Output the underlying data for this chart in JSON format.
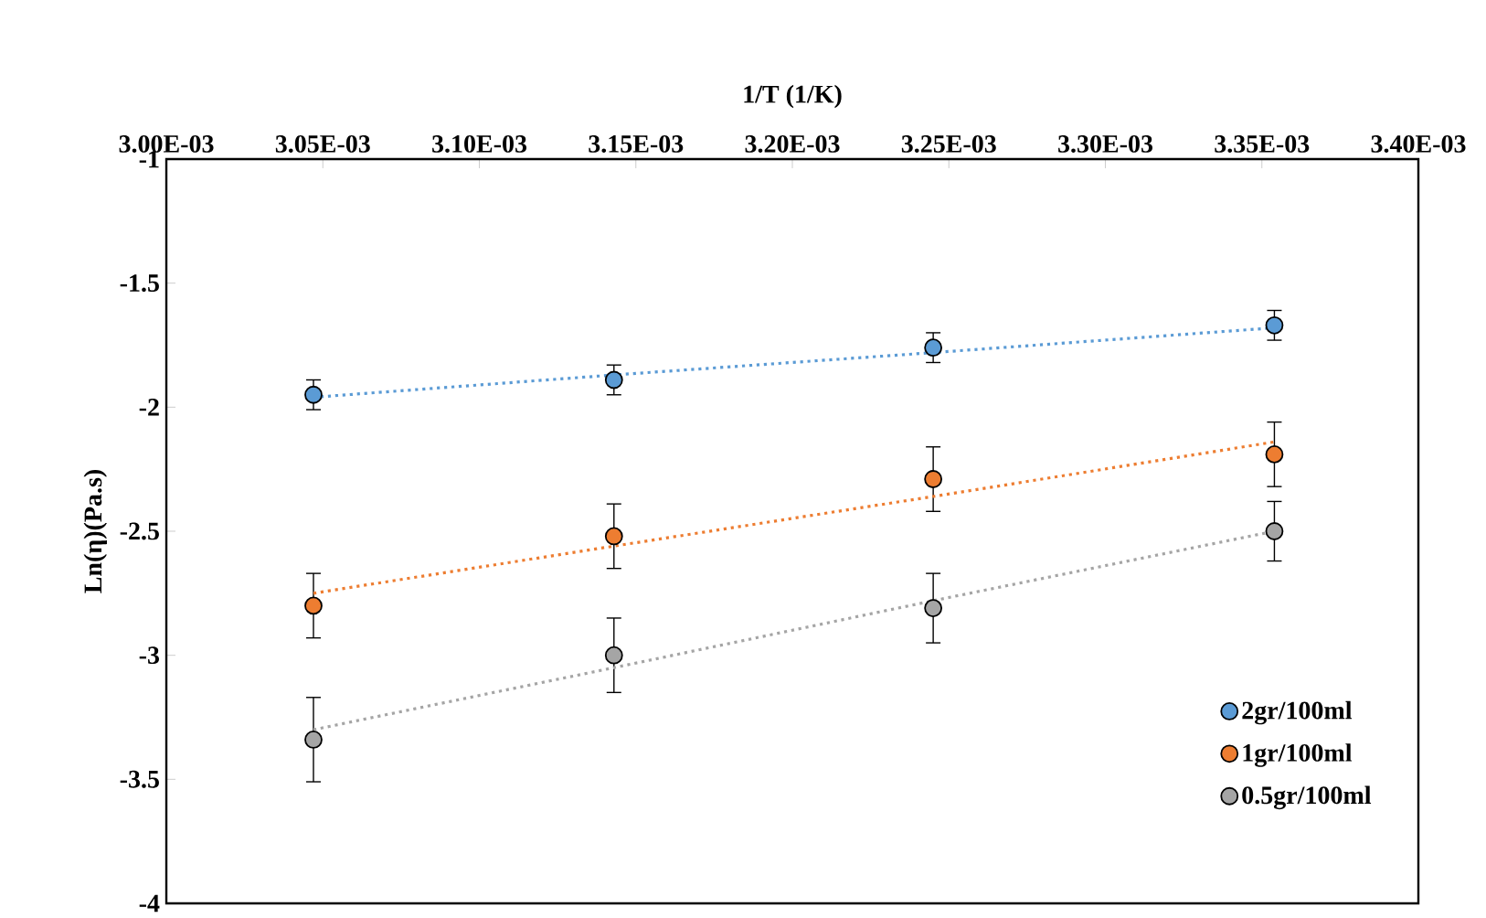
{
  "chart_data": {
    "type": "scatter",
    "xlabel": "1/T (1/K)",
    "ylabel": "Ln(η)(Pa.s)",
    "xlim": [
      0.003,
      0.0034
    ],
    "xticks": [
      {
        "value": 0.003,
        "label": "3.00E-03"
      },
      {
        "value": 0.00305,
        "label": "3.05E-03"
      },
      {
        "value": 0.0031,
        "label": "3.10E-03"
      },
      {
        "value": 0.00315,
        "label": "3.15E-03"
      },
      {
        "value": 0.0032,
        "label": "3.20E-03"
      },
      {
        "value": 0.00325,
        "label": "3.25E-03"
      },
      {
        "value": 0.0033,
        "label": "3.30E-03"
      },
      {
        "value": 0.00335,
        "label": "3.35E-03"
      },
      {
        "value": 0.0034,
        "label": "3.40E-03"
      }
    ],
    "ylim": [
      -4,
      -1
    ],
    "yticks": [
      -4,
      -3.5,
      -3,
      -2.5,
      -2,
      -1.5,
      -1
    ],
    "x": [
      0.003047,
      0.003143,
      0.003245,
      0.003354
    ],
    "grid": false,
    "legend": "bottom right",
    "series": [
      {
        "name": "2gr/100ml",
        "color": "#5b9bd5",
        "marker": "circle",
        "values": [
          -1.95,
          -1.89,
          -1.76,
          -1.67
        ],
        "errors": [
          0.06,
          0.06,
          0.06,
          0.06
        ]
      },
      {
        "name": "1gr/100ml",
        "color": "#ed7d31",
        "marker": "circle",
        "values": [
          -2.8,
          -2.52,
          -2.29,
          -2.19
        ],
        "errors": [
          0.13,
          0.13,
          0.13,
          0.13
        ]
      },
      {
        "name": "0.5gr/100ml",
        "color": "#a5a5a5",
        "marker": "circle",
        "values": [
          -3.34,
          -3.0,
          -2.81,
          -2.5
        ],
        "errors": [
          0.17,
          0.15,
          0.14,
          0.12
        ]
      },
      {
        "type": "line",
        "color": "#5b9bd5",
        "line_style": "dotted",
        "marker": "none",
        "values": [
          -1.96,
          -1.87,
          -1.78,
          -1.68
        ]
      },
      {
        "type": "line",
        "color": "#ed7d31",
        "line_style": "dotted",
        "marker": "none",
        "values": [
          -2.75,
          -2.56,
          -2.36,
          -2.14
        ]
      },
      {
        "type": "line",
        "color": "#a5a5a5",
        "line_style": "dotted",
        "marker": "none",
        "values": [
          -3.3,
          -3.05,
          -2.78,
          -2.5
        ]
      }
    ]
  }
}
